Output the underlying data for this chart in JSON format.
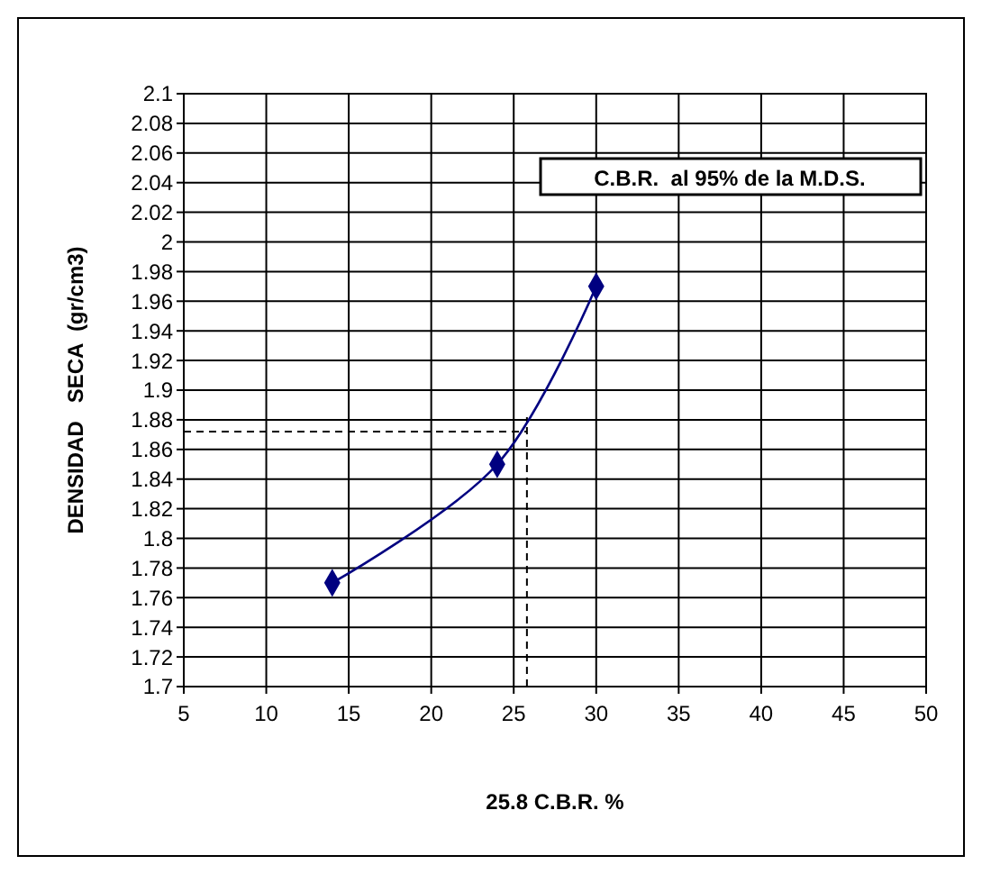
{
  "chart_data": {
    "type": "line",
    "xlabel": "25.8 C.B.R. %",
    "ylabel": "DENSIDAD   SECA  (gr/cm3)",
    "annotations": [
      "C.B.R.  al 95% de la M.D.S."
    ],
    "x": [
      14,
      24,
      30
    ],
    "series": [
      {
        "color": "#000080",
        "values": [
          1.77,
          1.85,
          1.97
        ]
      }
    ],
    "xlim": [
      5,
      50
    ],
    "xticks": [
      5,
      10,
      15,
      20,
      25,
      30,
      35,
      40,
      45,
      50
    ],
    "ylim": [
      1.7,
      2.1
    ],
    "yticks": [
      1.7,
      1.72,
      1.74,
      1.76,
      1.78,
      1.8,
      1.82,
      1.84,
      1.86,
      1.88,
      1.9,
      1.92,
      1.94,
      1.96,
      1.98,
      2,
      2.02,
      2.04,
      2.06,
      2.08,
      2.1
    ],
    "ref_lines": [
      {
        "axis": "x",
        "value": 25.8,
        "line_style": "dashed",
        "color": "#000000"
      },
      {
        "axis": "y",
        "value": 1.872,
        "line_style": "dashed",
        "color": "#000000"
      }
    ],
    "grid": true,
    "marker": "diamond",
    "line_style": "solid"
  }
}
